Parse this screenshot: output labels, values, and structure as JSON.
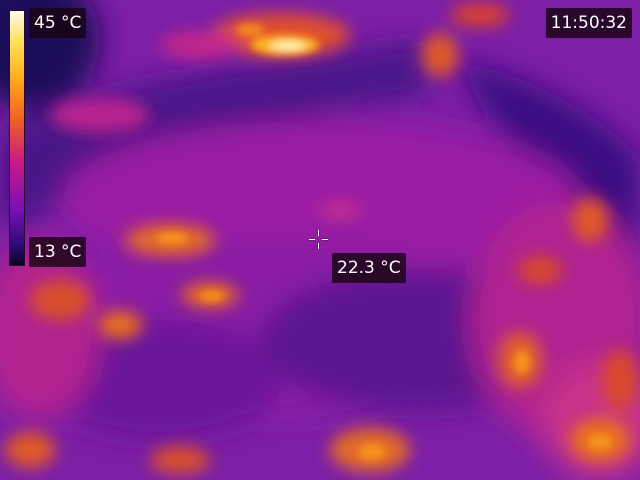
{
  "camera": {
    "scale_max_label": "45 °C",
    "scale_min_label": "13 °C",
    "time": "11:50:32",
    "spot_temperature": "22.3 °C",
    "palette": "iron"
  },
  "colors": {
    "label_background": "#180414",
    "label_text": "#ffffff",
    "palette_hot": "#fffbe8",
    "palette_warm": "#ffae1e",
    "palette_mid": "#c8188a",
    "palette_cool": "#7a10b4",
    "palette_cold": "#0a0424"
  },
  "icons": {
    "spot_marker": "crosshair-icon"
  }
}
